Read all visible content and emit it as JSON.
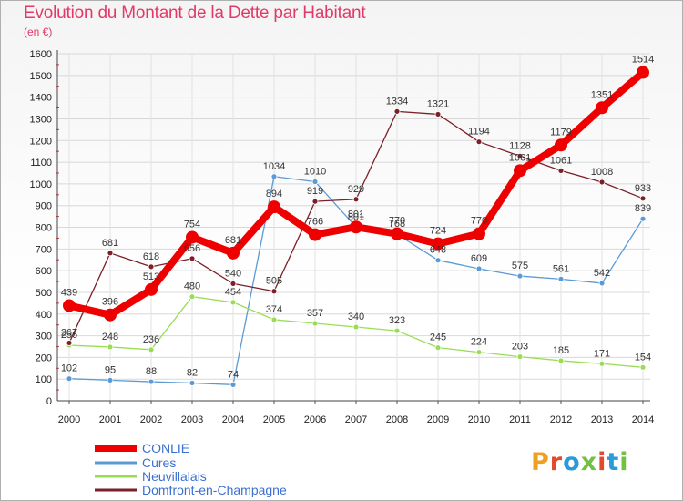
{
  "title": "Evolution du Montant de la Dette par Habitant",
  "unit_label": "(en €)",
  "logo": {
    "text": "Proxiti",
    "colors": [
      "#f0a020",
      "#e04b30",
      "#2a9ad8",
      "#73c043",
      "#e04b30",
      "#2a9ad8",
      "#73c043"
    ]
  },
  "chart_data": {
    "type": "line",
    "title": "Evolution du Montant de la Dette par Habitant",
    "ylabel": "(en €)",
    "xlabel": "",
    "ylim": [
      0,
      1600
    ],
    "yticks": [
      0,
      100,
      200,
      300,
      400,
      500,
      600,
      700,
      800,
      900,
      1000,
      1100,
      1200,
      1300,
      1400,
      1500,
      1600
    ],
    "x": [
      "2000",
      "2001",
      "2002",
      "2003",
      "2004",
      "2005",
      "2006",
      "2007",
      "2008",
      "2009",
      "2010",
      "2011",
      "2012",
      "2013",
      "2014"
    ],
    "grid": true,
    "legend_position": "bottom-left",
    "series": [
      {
        "name": "CONLIE",
        "color": "#ee0000",
        "emphasis": true,
        "values": [
          439,
          396,
          513,
          754,
          681,
          894,
          766,
          801,
          770,
          724,
          770,
          1061,
          1179,
          1351,
          1514
        ]
      },
      {
        "name": "Cures",
        "color": "#5b9ad5",
        "emphasis": false,
        "values": [
          102,
          95,
          88,
          82,
          74,
          1034,
          1010,
          801,
          768,
          648,
          609,
          575,
          561,
          542,
          839
        ]
      },
      {
        "name": "Neuvillalais",
        "color": "#99dd55",
        "emphasis": false,
        "values": [
          256,
          248,
          236,
          480,
          454,
          374,
          357,
          340,
          323,
          245,
          224,
          203,
          185,
          171,
          154
        ]
      },
      {
        "name": "Domfront-en-Champagne",
        "color": "#7b1f28",
        "emphasis": false,
        "values": [
          267,
          681,
          618,
          656,
          540,
          505,
          919,
          929,
          1334,
          1321,
          1194,
          1128,
          1061,
          1008,
          933
        ]
      }
    ]
  }
}
